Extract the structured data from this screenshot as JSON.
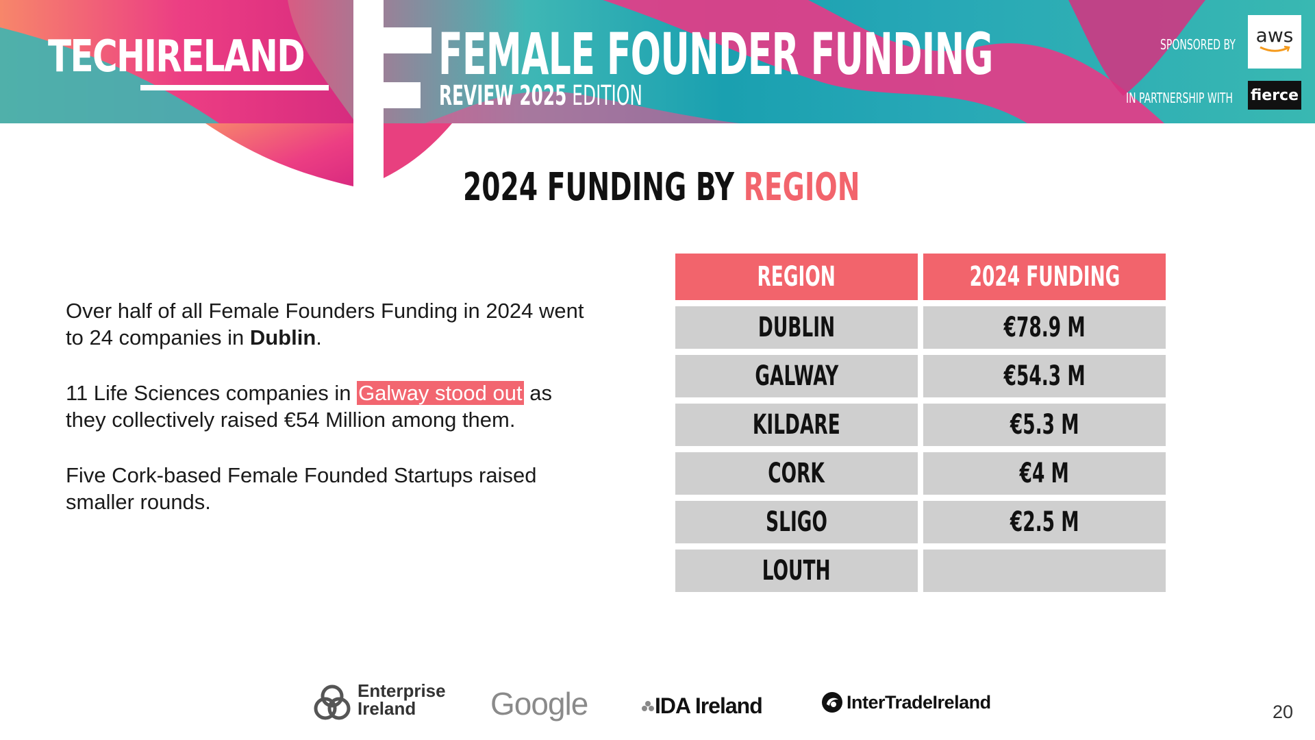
{
  "banner": {
    "logo": "TECHIRELAND",
    "title": "FEMALE FOUNDER FUNDING",
    "subtitle_bold": "REVIEW 2025",
    "subtitle_light": " EDITION",
    "sponsored_by": "SPONSORED BY",
    "sponsor": "aws",
    "in_partnership_with": "IN PARTNERSHIP WITH",
    "partner": "fierce"
  },
  "heading": {
    "part1": "2024 FUNDING BY ",
    "part2": "REGION"
  },
  "body": {
    "p1_text": "Over half of all Female Founders Funding in 2024 went to 24 companies in ",
    "p1_bold": "Dublin",
    "p1_end": ".",
    "p2_start": "11 Life Sciences companies in ",
    "p2_highlight": "Galway stood out",
    "p2_end": " as they collectively raised €54 Million among them.",
    "p3": "Five Cork-based Female Founded Startups raised smaller rounds."
  },
  "table": {
    "headers": [
      "REGION",
      "2024 FUNDING"
    ],
    "rows": [
      {
        "region": "DUBLIN",
        "funding": "€78.9 M"
      },
      {
        "region": "GALWAY",
        "funding": "€54.3 M"
      },
      {
        "region": "KILDARE",
        "funding": "€5.3 M"
      },
      {
        "region": "CORK",
        "funding": "€4 M"
      },
      {
        "region": "SLIGO",
        "funding": "€2.5 M"
      },
      {
        "region": "LOUTH",
        "funding": ""
      }
    ]
  },
  "footer": {
    "enterprise_line1": "Enterprise",
    "enterprise_line2": "Ireland",
    "google": "Google",
    "ida": "IDA Ireland",
    "intertrade": "InterTradeIreland",
    "page_number": "20"
  },
  "colors": {
    "accent": "#f2646c",
    "table_cell": "#cfcfcf",
    "teal": "#1aa0b0",
    "pink": "#e8527e"
  }
}
